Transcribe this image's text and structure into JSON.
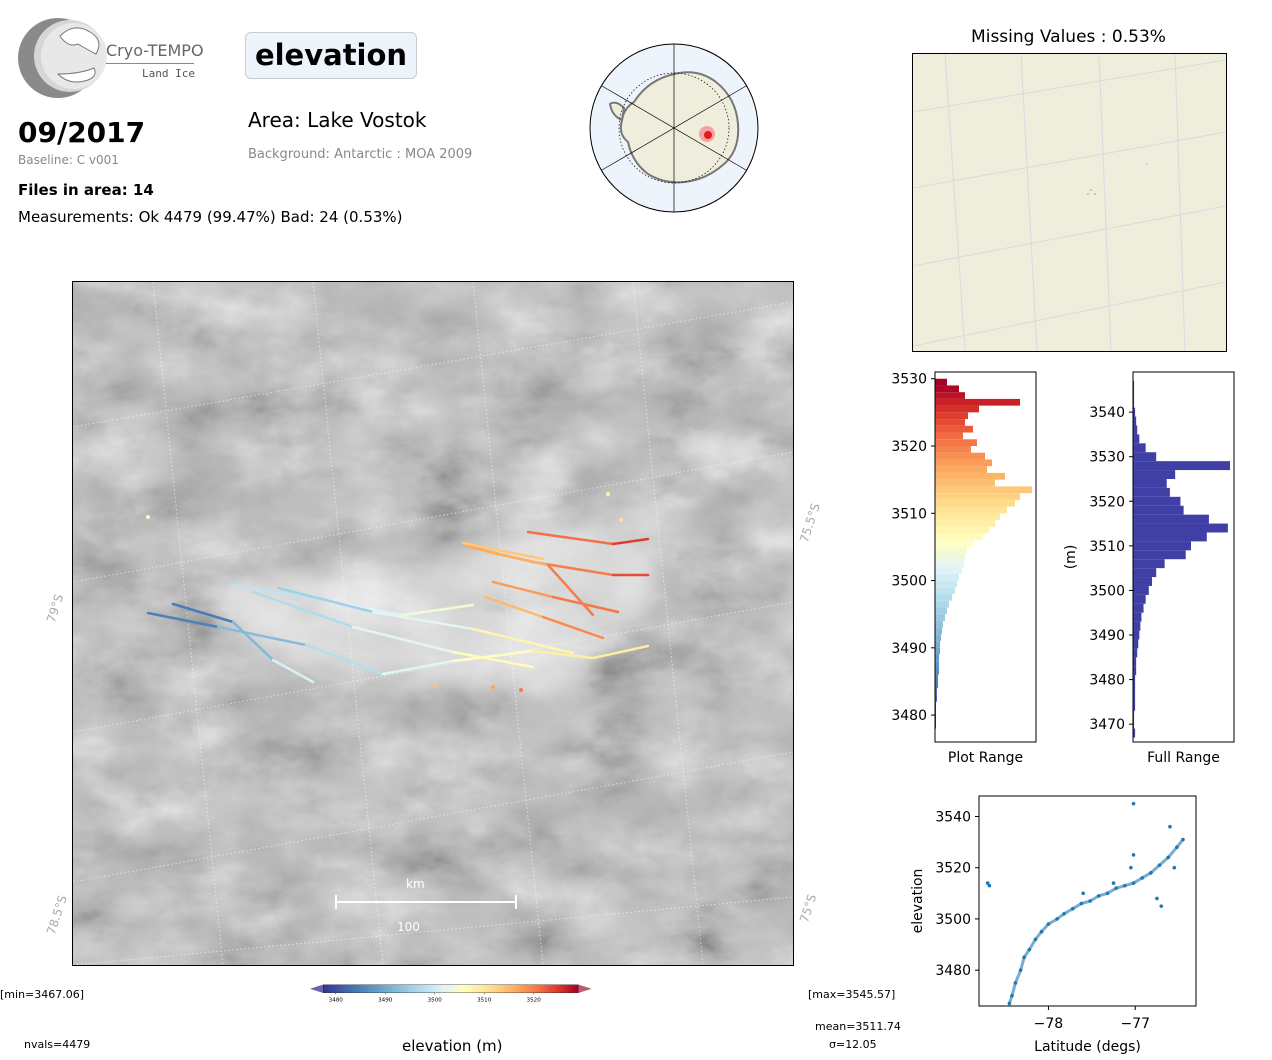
{
  "logo": {
    "name": "Cryo-TEMPO",
    "subtitle": "Land Ice"
  },
  "header": {
    "date": "09/2017",
    "baseline": "Baseline: C v001",
    "files": "Files in area: 14",
    "measurements": "Measurements: Ok 4479 (99.47%) Bad: 24 (0.53%)",
    "parameter": "elevation",
    "area": "Area: Lake Vostok",
    "background": "Background: Antarctic : MOA 2009"
  },
  "colors": {
    "hist_full": "#3f3fa6",
    "scatter": "#1f77b4",
    "missing_bg": "#efeedc",
    "locator_land": "#efeedc",
    "locator_ocean": "#eef4fb"
  },
  "missing": {
    "title": "Missing Values : 0.53%"
  },
  "main_map": {
    "lat_labels": [
      "79°S",
      "78.5°S"
    ],
    "lon_labels": [
      "75.5°S",
      "75°S"
    ],
    "scalebar": {
      "unit": "km",
      "value": "100"
    }
  },
  "colorbar": {
    "min_label": "[min=3467.06]",
    "max_label": "[max=3545.57]",
    "label": "elevation (m)",
    "ticks": [
      "3480",
      "3490",
      "3500",
      "3510",
      "3520"
    ],
    "range": [
      3477.5,
      3529
    ]
  },
  "stats": {
    "nvals": "nvals=4479",
    "mean": "mean=3511.74",
    "sigma": "σ=12.05"
  },
  "chart_data": [
    {
      "type": "bar",
      "orientation": "horizontal",
      "title": "",
      "xlabel": "Plot Range",
      "ylabel": "",
      "ylim": [
        3476,
        3531
      ],
      "yticks": [
        "3480",
        "3490",
        "3500",
        "3510",
        "3520",
        "3530"
      ],
      "bins": [
        3478,
        3479,
        3480,
        3481,
        3482,
        3483,
        3484,
        3485,
        3486,
        3487,
        3488,
        3489,
        3490,
        3491,
        3492,
        3493,
        3494,
        3495,
        3496,
        3497,
        3498,
        3499,
        3500,
        3501,
        3502,
        3503,
        3504,
        3505,
        3506,
        3507,
        3508,
        3509,
        3510,
        3511,
        3512,
        3513,
        3514,
        3515,
        3516,
        3517,
        3518,
        3519,
        3520,
        3521,
        3522,
        3523,
        3524,
        3525,
        3526,
        3527,
        3528,
        3529
      ],
      "values": [
        1,
        1,
        1,
        1,
        2,
        2,
        3,
        3,
        4,
        4,
        4,
        5,
        5,
        6,
        7,
        8,
        10,
        12,
        14,
        17,
        20,
        22,
        24,
        27,
        29,
        30,
        32,
        38,
        48,
        54,
        60,
        65,
        72,
        80,
        85,
        97,
        60,
        70,
        52,
        57,
        50,
        36,
        42,
        28,
        38,
        30,
        33,
        44,
        85,
        30,
        24,
        12
      ]
    },
    {
      "type": "bar",
      "orientation": "horizontal",
      "title": "",
      "xlabel": "Full Range",
      "ylabel": "(m)",
      "ylim": [
        3466,
        3549
      ],
      "yticks": [
        "3470",
        "3480",
        "3490",
        "3500",
        "3510",
        "3520",
        "3530",
        "3540"
      ],
      "bins": [
        3467,
        3469,
        3471,
        3473,
        3475,
        3477,
        3479,
        3481,
        3483,
        3485,
        3487,
        3489,
        3491,
        3493,
        3495,
        3497,
        3499,
        3501,
        3503,
        3505,
        3507,
        3509,
        3511,
        3513,
        3515,
        3517,
        3519,
        3521,
        3523,
        3525,
        3527,
        3529,
        3531,
        3533,
        3535,
        3537,
        3539,
        3541,
        3543,
        3545
      ],
      "values": [
        2,
        1,
        1,
        2,
        2,
        2,
        2,
        3,
        3,
        4,
        5,
        6,
        7,
        8,
        10,
        12,
        15,
        18,
        22,
        30,
        50,
        55,
        70,
        90,
        72,
        48,
        45,
        35,
        32,
        40,
        92,
        22,
        12,
        6,
        4,
        3,
        2,
        1,
        1,
        1
      ]
    },
    {
      "type": "scatter",
      "title": "",
      "xlabel": "Latitude (degs)",
      "ylabel": "elevation",
      "xlim": [
        -78.8,
        -76.3
      ],
      "ylim": [
        3466,
        3548
      ],
      "xticks": [
        "−78",
        "−77"
      ],
      "yticks": [
        "3480",
        "3500",
        "3520",
        "3540"
      ],
      "x": [
        -78.7,
        -78.68,
        -78.45,
        -78.42,
        -78.38,
        -78.32,
        -78.28,
        -78.22,
        -78.15,
        -78.08,
        -78.0,
        -77.9,
        -77.82,
        -77.72,
        -77.62,
        -77.52,
        -77.42,
        -77.32,
        -77.22,
        -77.12,
        -77.02,
        -76.92,
        -76.82,
        -76.72,
        -76.62,
        -76.52,
        -76.45,
        -77.02,
        -77.02,
        -76.7,
        -76.55,
        -77.6,
        -77.25,
        -76.6,
        -76.75,
        -77.05
      ],
      "y": [
        3514,
        3513,
        3467,
        3470,
        3475,
        3480,
        3485,
        3488,
        3492,
        3495,
        3498,
        3500,
        3502,
        3504,
        3506,
        3507,
        3509,
        3510,
        3512,
        3513,
        3514,
        3516,
        3518,
        3521,
        3524,
        3528,
        3531,
        3545,
        3525,
        3505,
        3520,
        3510,
        3514,
        3536,
        3508,
        3520
      ]
    }
  ]
}
